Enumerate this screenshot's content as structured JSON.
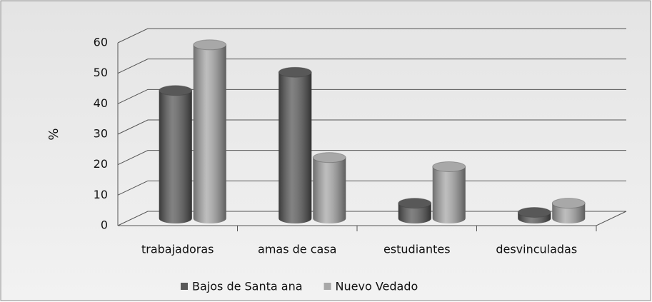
{
  "chart_data": {
    "type": "bar3d",
    "y_label": "%",
    "categories": [
      "trabajadoras",
      "amas de casa",
      "estudiantes",
      "desvinculadas"
    ],
    "series": [
      {
        "name": "Bajos de Santa ana",
        "color": "#585858",
        "values": [
          42,
          48,
          5,
          2
        ]
      },
      {
        "name": "Nuevo Vedado",
        "color": "#a8a8a8",
        "values": [
          57,
          20,
          17,
          5
        ]
      }
    ],
    "ylim": [
      0,
      60
    ],
    "yticks": [
      0,
      10,
      20,
      30,
      40,
      50,
      60
    ],
    "grid": true,
    "legend": "bottom"
  }
}
